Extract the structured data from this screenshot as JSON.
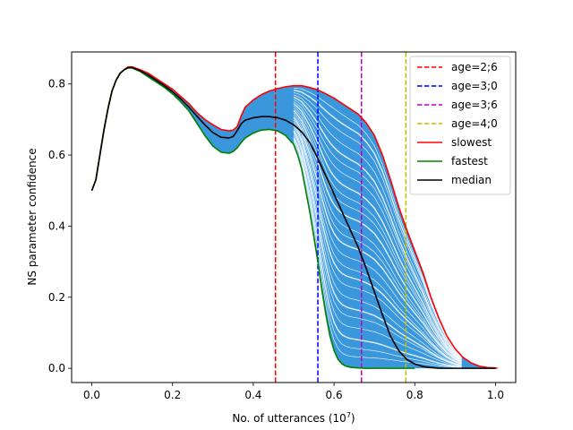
{
  "chart_data": {
    "type": "line",
    "title": "",
    "xlabel": "No. of utterances (10",
    "xlabel_exponent": "7",
    "xlabel_suffix": ")",
    "ylabel": "NS parameter confidence",
    "xlim": [
      -0.05,
      1.05
    ],
    "ylim": [
      -0.04,
      0.89
    ],
    "xticks": [
      {
        "value": 0.0,
        "label": "0.0"
      },
      {
        "value": 0.2,
        "label": "0.2"
      },
      {
        "value": 0.4,
        "label": "0.4"
      },
      {
        "value": 0.6,
        "label": "0.6"
      },
      {
        "value": 0.8,
        "label": "0.8"
      },
      {
        "value": 1.0,
        "label": "1.0"
      }
    ],
    "yticks": [
      {
        "value": 0.0,
        "label": "0.0"
      },
      {
        "value": 0.2,
        "label": "0.2"
      },
      {
        "value": 0.4,
        "label": "0.4"
      },
      {
        "value": 0.6,
        "label": "0.6"
      },
      {
        "value": 0.8,
        "label": "0.8"
      }
    ],
    "fill_color": "#3a97dc",
    "vlines": [
      {
        "name": "age=2;6",
        "x": 0.455,
        "color": "#ff0000"
      },
      {
        "name": "age=3;0",
        "x": 0.56,
        "color": "#0000ff"
      },
      {
        "name": "age=3;6",
        "x": 0.668,
        "color": "#bf00bf"
      },
      {
        "name": "age=4;0",
        "x": 0.778,
        "color": "#bfbf00"
      }
    ],
    "series": [
      {
        "name": "slowest",
        "color": "#ff0000",
        "points": [
          [
            0.0,
            0.5
          ],
          [
            0.01,
            0.53
          ],
          [
            0.02,
            0.6
          ],
          [
            0.03,
            0.67
          ],
          [
            0.04,
            0.73
          ],
          [
            0.05,
            0.78
          ],
          [
            0.06,
            0.81
          ],
          [
            0.07,
            0.83
          ],
          [
            0.08,
            0.84
          ],
          [
            0.09,
            0.848
          ],
          [
            0.1,
            0.848
          ],
          [
            0.12,
            0.84
          ],
          [
            0.14,
            0.83
          ],
          [
            0.16,
            0.815
          ],
          [
            0.18,
            0.8
          ],
          [
            0.2,
            0.785
          ],
          [
            0.22,
            0.765
          ],
          [
            0.24,
            0.745
          ],
          [
            0.26,
            0.72
          ],
          [
            0.28,
            0.7
          ],
          [
            0.3,
            0.685
          ],
          [
            0.32,
            0.672
          ],
          [
            0.34,
            0.668
          ],
          [
            0.35,
            0.67
          ],
          [
            0.36,
            0.68
          ],
          [
            0.37,
            0.71
          ],
          [
            0.38,
            0.735
          ],
          [
            0.4,
            0.755
          ],
          [
            0.42,
            0.77
          ],
          [
            0.44,
            0.78
          ],
          [
            0.46,
            0.787
          ],
          [
            0.48,
            0.792
          ],
          [
            0.5,
            0.795
          ],
          [
            0.52,
            0.795
          ],
          [
            0.54,
            0.79
          ],
          [
            0.56,
            0.783
          ],
          [
            0.58,
            0.772
          ],
          [
            0.6,
            0.76
          ],
          [
            0.62,
            0.745
          ],
          [
            0.64,
            0.73
          ],
          [
            0.66,
            0.715
          ],
          [
            0.68,
            0.69
          ],
          [
            0.7,
            0.655
          ],
          [
            0.72,
            0.6
          ],
          [
            0.74,
            0.53
          ],
          [
            0.76,
            0.455
          ],
          [
            0.78,
            0.39
          ],
          [
            0.8,
            0.33
          ],
          [
            0.82,
            0.27
          ],
          [
            0.84,
            0.2
          ],
          [
            0.86,
            0.14
          ],
          [
            0.88,
            0.09
          ],
          [
            0.9,
            0.055
          ],
          [
            0.92,
            0.03
          ],
          [
            0.94,
            0.015
          ],
          [
            0.96,
            0.006
          ],
          [
            0.98,
            0.002
          ],
          [
            1.0,
            0.001
          ],
          [
            1.005,
            0.0
          ]
        ]
      },
      {
        "name": "fastest",
        "color": "#008000",
        "points": [
          [
            0.0,
            0.5
          ],
          [
            0.01,
            0.53
          ],
          [
            0.02,
            0.6
          ],
          [
            0.03,
            0.67
          ],
          [
            0.04,
            0.73
          ],
          [
            0.05,
            0.78
          ],
          [
            0.06,
            0.81
          ],
          [
            0.07,
            0.83
          ],
          [
            0.08,
            0.84
          ],
          [
            0.09,
            0.845
          ],
          [
            0.1,
            0.845
          ],
          [
            0.12,
            0.835
          ],
          [
            0.14,
            0.82
          ],
          [
            0.16,
            0.805
          ],
          [
            0.18,
            0.79
          ],
          [
            0.2,
            0.772
          ],
          [
            0.22,
            0.75
          ],
          [
            0.24,
            0.725
          ],
          [
            0.26,
            0.69
          ],
          [
            0.28,
            0.655
          ],
          [
            0.3,
            0.625
          ],
          [
            0.32,
            0.608
          ],
          [
            0.34,
            0.605
          ],
          [
            0.35,
            0.61
          ],
          [
            0.36,
            0.62
          ],
          [
            0.37,
            0.635
          ],
          [
            0.38,
            0.648
          ],
          [
            0.4,
            0.662
          ],
          [
            0.42,
            0.67
          ],
          [
            0.44,
            0.672
          ],
          [
            0.46,
            0.668
          ],
          [
            0.48,
            0.655
          ],
          [
            0.5,
            0.63
          ],
          [
            0.51,
            0.6
          ],
          [
            0.52,
            0.56
          ],
          [
            0.53,
            0.5
          ],
          [
            0.54,
            0.44
          ],
          [
            0.55,
            0.37
          ],
          [
            0.56,
            0.3
          ],
          [
            0.57,
            0.22
          ],
          [
            0.58,
            0.15
          ],
          [
            0.59,
            0.09
          ],
          [
            0.6,
            0.05
          ],
          [
            0.61,
            0.025
          ],
          [
            0.62,
            0.012
          ],
          [
            0.63,
            0.006
          ],
          [
            0.64,
            0.003
          ],
          [
            0.66,
            0.001
          ],
          [
            0.68,
            0.0
          ],
          [
            0.8,
            0.0
          ]
        ]
      },
      {
        "name": "median",
        "color": "#000000",
        "points": [
          [
            0.0,
            0.5
          ],
          [
            0.01,
            0.53
          ],
          [
            0.02,
            0.6
          ],
          [
            0.03,
            0.67
          ],
          [
            0.04,
            0.73
          ],
          [
            0.05,
            0.78
          ],
          [
            0.06,
            0.81
          ],
          [
            0.07,
            0.83
          ],
          [
            0.08,
            0.84
          ],
          [
            0.09,
            0.846
          ],
          [
            0.1,
            0.846
          ],
          [
            0.12,
            0.837
          ],
          [
            0.14,
            0.825
          ],
          [
            0.16,
            0.81
          ],
          [
            0.18,
            0.795
          ],
          [
            0.2,
            0.778
          ],
          [
            0.22,
            0.758
          ],
          [
            0.24,
            0.735
          ],
          [
            0.26,
            0.71
          ],
          [
            0.28,
            0.685
          ],
          [
            0.3,
            0.663
          ],
          [
            0.32,
            0.65
          ],
          [
            0.34,
            0.648
          ],
          [
            0.35,
            0.652
          ],
          [
            0.36,
            0.668
          ],
          [
            0.37,
            0.688
          ],
          [
            0.38,
            0.698
          ],
          [
            0.4,
            0.705
          ],
          [
            0.42,
            0.708
          ],
          [
            0.44,
            0.708
          ],
          [
            0.46,
            0.705
          ],
          [
            0.48,
            0.698
          ],
          [
            0.5,
            0.685
          ],
          [
            0.52,
            0.665
          ],
          [
            0.54,
            0.635
          ],
          [
            0.56,
            0.59
          ],
          [
            0.58,
            0.54
          ],
          [
            0.6,
            0.49
          ],
          [
            0.62,
            0.44
          ],
          [
            0.64,
            0.39
          ],
          [
            0.66,
            0.34
          ],
          [
            0.68,
            0.28
          ],
          [
            0.7,
            0.215
          ],
          [
            0.72,
            0.15
          ],
          [
            0.74,
            0.09
          ],
          [
            0.76,
            0.05
          ],
          [
            0.78,
            0.025
          ],
          [
            0.8,
            0.012
          ],
          [
            0.82,
            0.005
          ],
          [
            0.84,
            0.002
          ],
          [
            0.86,
            0.0
          ],
          [
            1.0,
            0.0
          ]
        ]
      }
    ],
    "legend_position": "upper-right"
  }
}
